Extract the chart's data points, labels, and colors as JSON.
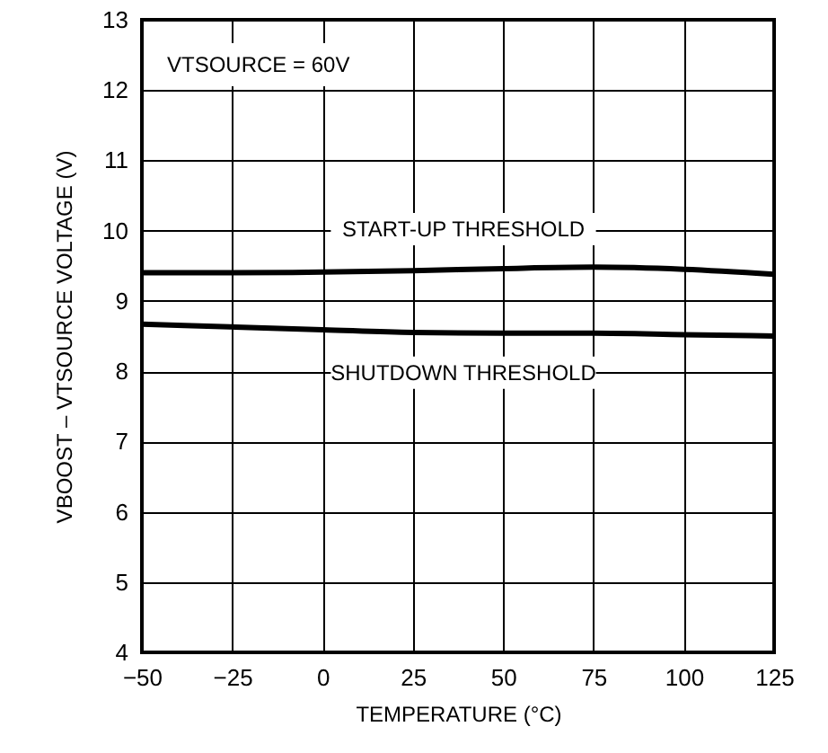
{
  "chart_data": {
    "type": "line",
    "xlabel": "TEMPERATURE (°C)",
    "ylabel": "VBOOST – VTSOURCE VOLTAGE (V)",
    "annotations": [
      "VTSOURCE = 60V"
    ],
    "x": [
      -50,
      -25,
      0,
      25,
      50,
      75,
      100,
      125
    ],
    "series": [
      {
        "name": "START-UP THRESHOLD",
        "color": "#000000",
        "values": [
          9.4,
          9.4,
          9.41,
          9.43,
          9.46,
          9.48,
          9.45,
          9.38
        ]
      },
      {
        "name": "SHUTDOWN THRESHOLD",
        "color": "#000000",
        "values": [
          8.67,
          8.63,
          8.59,
          8.55,
          8.54,
          8.54,
          8.52,
          8.5
        ]
      }
    ],
    "xlim": [
      -50,
      125
    ],
    "xticks": [
      -50,
      -25,
      0,
      25,
      50,
      75,
      100,
      125
    ],
    "ylim": [
      4,
      13
    ],
    "yticks": [
      4,
      5,
      6,
      7,
      8,
      9,
      10,
      11,
      12,
      13
    ],
    "grid": true,
    "marker": "none",
    "line_style": "solid"
  }
}
